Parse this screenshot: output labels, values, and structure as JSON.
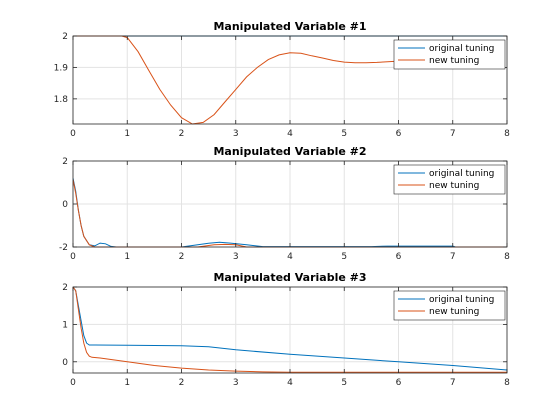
{
  "chart_data": [
    {
      "type": "line",
      "title": "Manipulated Variable #1",
      "xlim": [
        0,
        8
      ],
      "ylim": [
        1.72,
        2.0
      ],
      "xticks": [
        "0",
        "1",
        "2",
        "3",
        "4",
        "5",
        "6",
        "7",
        "8"
      ],
      "yticks": [
        "1.8",
        "1.9",
        "2"
      ],
      "ytick_values": [
        1.8,
        1.9,
        2.0
      ],
      "grid": true,
      "legend_position": "top-right",
      "series": [
        {
          "name": "original tuning",
          "color": "#0072BD",
          "x": [
            0,
            8
          ],
          "y": [
            2.0,
            2.0
          ]
        },
        {
          "name": "new tuning",
          "color": "#D95319",
          "x": [
            0,
            0.9,
            1.0,
            1.2,
            1.4,
            1.6,
            1.8,
            2.0,
            2.2,
            2.4,
            2.6,
            2.8,
            3.0,
            3.2,
            3.4,
            3.6,
            3.8,
            4.0,
            4.2,
            4.4,
            4.6,
            4.8,
            5.0,
            5.2,
            5.4,
            5.6,
            5.8,
            6.0,
            6.2
          ],
          "y": [
            2.0,
            2.0,
            1.995,
            1.95,
            1.89,
            1.83,
            1.78,
            1.74,
            1.72,
            1.725,
            1.75,
            1.79,
            1.83,
            1.87,
            1.9,
            1.925,
            1.94,
            1.947,
            1.945,
            1.937,
            1.93,
            1.922,
            1.917,
            1.915,
            1.915,
            1.916,
            1.918,
            1.92,
            1.922
          ]
        }
      ]
    },
    {
      "type": "line",
      "title": "Manipulated Variable #2",
      "xlim": [
        0,
        8
      ],
      "ylim": [
        -2,
        2
      ],
      "xticks": [
        "0",
        "1",
        "2",
        "3",
        "4",
        "5",
        "6",
        "7",
        "8"
      ],
      "yticks": [
        "-2",
        "0",
        "2"
      ],
      "ytick_values": [
        -2,
        0,
        2
      ],
      "grid": true,
      "legend_position": "top-right",
      "series": [
        {
          "name": "original tuning",
          "color": "#0072BD",
          "x": [
            0,
            0.05,
            0.1,
            0.15,
            0.2,
            0.3,
            0.4,
            0.5,
            0.6,
            0.7,
            0.8,
            2.0,
            2.2,
            2.5,
            2.7,
            2.9,
            3.2,
            3.5,
            5.5,
            5.8,
            6.5,
            7.0,
            7.05,
            8.0
          ],
          "y": [
            1.2,
            0.6,
            -0.3,
            -1.0,
            -1.5,
            -1.9,
            -1.95,
            -1.82,
            -1.85,
            -1.97,
            -2.0,
            -2.0,
            -1.93,
            -1.83,
            -1.78,
            -1.82,
            -1.9,
            -1.98,
            -1.98,
            -1.96,
            -1.96,
            -1.96,
            -2.0,
            -2.0
          ]
        },
        {
          "name": "new tuning",
          "color": "#D95319",
          "x": [
            0,
            0.05,
            0.1,
            0.15,
            0.2,
            0.3,
            0.4,
            0.5,
            0.6,
            2.3,
            2.6,
            2.8,
            3.0,
            3.2,
            8.0
          ],
          "y": [
            1.15,
            0.5,
            -0.3,
            -1.0,
            -1.5,
            -1.9,
            -2.0,
            -2.0,
            -2.0,
            -2.0,
            -1.9,
            -1.88,
            -1.9,
            -2.0,
            -2.0
          ]
        }
      ]
    },
    {
      "type": "line",
      "title": "Manipulated Variable #3",
      "xlim": [
        0,
        8
      ],
      "ylim": [
        -0.3,
        2
      ],
      "xticks": [
        "0",
        "1",
        "2",
        "3",
        "4",
        "5",
        "6",
        "7",
        "8"
      ],
      "yticks": [
        "0",
        "1",
        "2"
      ],
      "ytick_values": [
        0,
        1,
        2
      ],
      "grid": true,
      "legend_position": "top-right",
      "series": [
        {
          "name": "original tuning",
          "color": "#0072BD",
          "x": [
            0,
            0.05,
            0.1,
            0.15,
            0.2,
            0.25,
            0.3,
            0.4,
            1.0,
            2.0,
            2.5,
            3.0,
            4.0,
            5.0,
            6.0,
            7.0,
            8.0
          ],
          "y": [
            2.0,
            1.9,
            1.5,
            1.1,
            0.7,
            0.5,
            0.45,
            0.45,
            0.44,
            0.43,
            0.4,
            0.32,
            0.2,
            0.1,
            0.0,
            -0.1,
            -0.22
          ]
        },
        {
          "name": "new tuning",
          "color": "#D95319",
          "x": [
            0,
            0.05,
            0.1,
            0.15,
            0.2,
            0.25,
            0.3,
            0.35,
            0.5,
            1.0,
            1.5,
            2.0,
            2.5,
            3.0,
            3.5,
            4.0,
            5.0,
            8.0
          ],
          "y": [
            2.0,
            1.9,
            1.4,
            0.9,
            0.5,
            0.25,
            0.15,
            0.12,
            0.1,
            0.0,
            -0.1,
            -0.17,
            -0.22,
            -0.25,
            -0.27,
            -0.28,
            -0.28,
            -0.28
          ]
        }
      ]
    }
  ]
}
